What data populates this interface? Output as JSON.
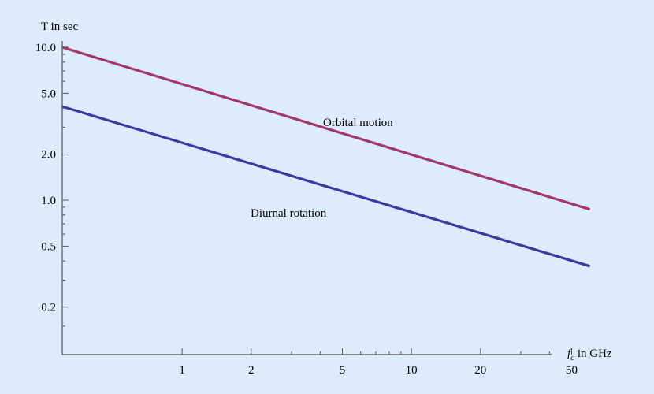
{
  "chart_data": {
    "type": "line",
    "background": "#dcecfb",
    "x_axis": {
      "label_main": "f",
      "label_sub": "c",
      "label_rest": " in GHz",
      "scale": "log",
      "range": [
        0.3,
        75
      ],
      "major_ticks": [
        1,
        2,
        5,
        10,
        20,
        50
      ],
      "major_tick_labels": [
        "1",
        "2",
        "5",
        "10",
        "20",
        "50"
      ],
      "minor_ticks": [
        3,
        4,
        6,
        7,
        8,
        9,
        30,
        40,
        60,
        70
      ]
    },
    "y_axis": {
      "label": "T in sec",
      "scale": "log",
      "range": [
        0.1,
        10.5
      ],
      "major_ticks": [
        10.0,
        5.0,
        2.0,
        1.0,
        0.5,
        0.2
      ],
      "major_tick_labels": [
        "10.0",
        "5.0",
        "2.0",
        "1.0",
        "0.5",
        "0.2"
      ],
      "minor_ticks": [
        9,
        8,
        7,
        6,
        4,
        3,
        0.9,
        0.8,
        0.7,
        0.6,
        0.4,
        0.3,
        0.15
      ]
    },
    "series": [
      {
        "name": "Orbital motion",
        "color": "#a2376b",
        "x": [
          0.3,
          60
        ],
        "y": [
          10.0,
          0.87
        ]
      },
      {
        "name": "Diurnal rotation",
        "color": "#3b3aa0",
        "x": [
          0.3,
          60
        ],
        "y": [
          4.1,
          0.37
        ]
      }
    ]
  }
}
